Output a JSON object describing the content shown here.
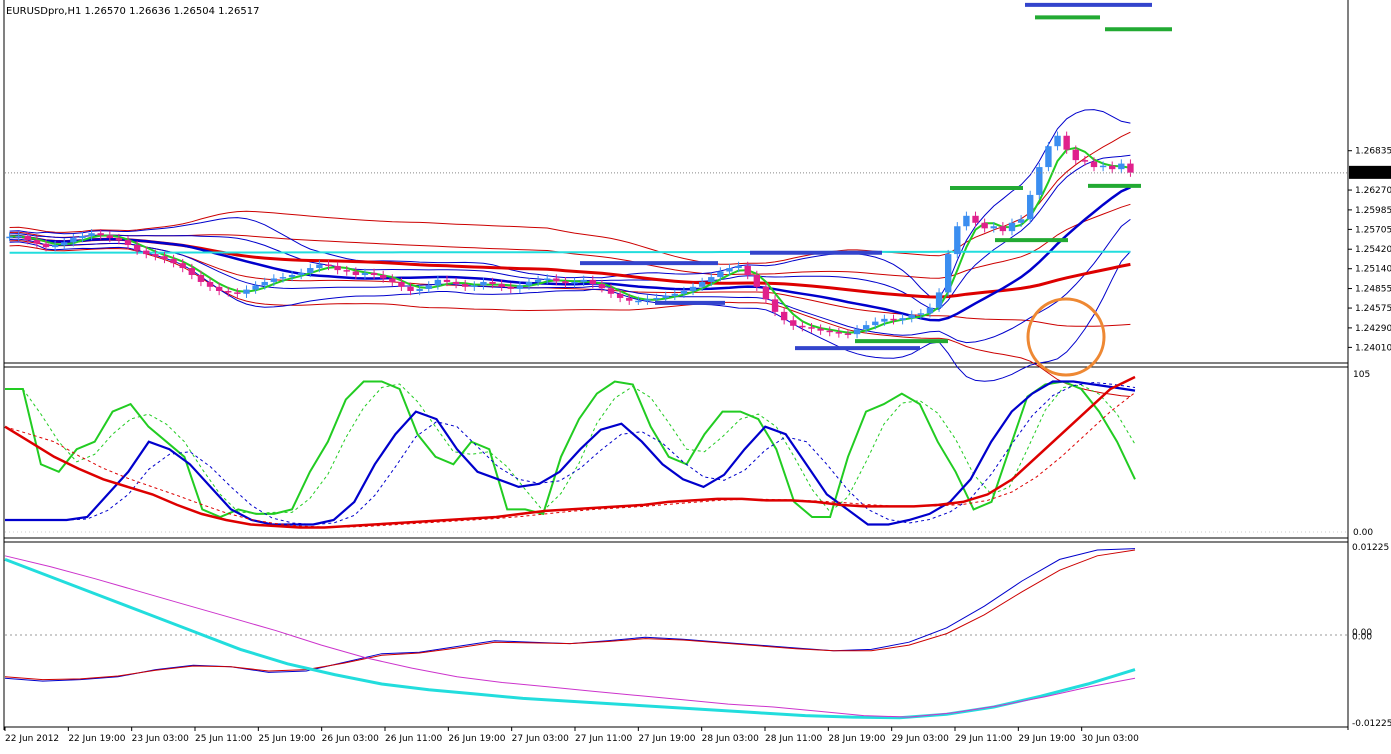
{
  "header": {
    "symbol_info": "EURUSDpro,H1  1.26570 1.26636 1.26504 1.26517"
  },
  "colors": {
    "background": "#ffffff",
    "bull_candle": "#3b8ef0",
    "bear_candle": "#e0208c",
    "bb_outer": "#cc0000",
    "bb_inner": "#0000cc",
    "ma_red": "#dd0000",
    "ma_blue": "#0000cc",
    "ma_green": "#22cc22",
    "ma_cyan": "#22dddd",
    "level_blue": "#3344cc",
    "level_green": "#22aa33",
    "circle_orange": "#ee8833",
    "osc_magenta": "#cc33cc"
  },
  "chart_data": [
    {
      "type": "candlestick",
      "title": "EURUSDpro,H1",
      "ylim": [
        1.238,
        1.29
      ],
      "y_ticks": [
        "1.26835",
        "1.26270",
        "1.25985",
        "1.25705",
        "1.25420",
        "1.25140",
        "1.24855",
        "1.24575",
        "1.24290",
        "1.24010"
      ],
      "current_price": "1.26517",
      "x_ticks": [
        "22 Jun 2012",
        "22 Jun 19:00",
        "23 Jun 03:00",
        "25 Jun 11:00",
        "25 Jun 19:00",
        "26 Jun 03:00",
        "26 Jun 11:00",
        "26 Jun 19:00",
        "27 Jun 03:00",
        "27 Jun 11:00",
        "27 Jun 19:00",
        "28 Jun 03:00",
        "28 Jun 11:00",
        "28 Jun 19:00",
        "29 Jun 03:00",
        "29 Jun 11:00",
        "29 Jun 19:00",
        "30 Jun 03:00"
      ],
      "closes": [
        1.256,
        1.2561,
        1.2555,
        1.255,
        1.2545,
        1.2548,
        1.2552,
        1.2558,
        1.2561,
        1.2565,
        1.2562,
        1.2558,
        1.2555,
        1.2548,
        1.254,
        1.2535,
        1.2532,
        1.2528,
        1.2522,
        1.2515,
        1.2505,
        1.2495,
        1.2488,
        1.2482,
        1.248,
        1.2478,
        1.2484,
        1.249,
        1.2495,
        1.25,
        1.2502,
        1.2505,
        1.2508,
        1.2515,
        1.252,
        1.2518,
        1.2512,
        1.251,
        1.2505,
        1.2508,
        1.2505,
        1.25,
        1.2495,
        1.2488,
        1.2482,
        1.2485,
        1.249,
        1.2498,
        1.2495,
        1.2492,
        1.2488,
        1.249,
        1.2495,
        1.2492,
        1.2488,
        1.2485,
        1.249,
        1.2495,
        1.2498,
        1.25,
        1.2496,
        1.2493,
        1.2495,
        1.2498,
        1.2492,
        1.2486,
        1.2478,
        1.2472,
        1.2468,
        1.2468,
        1.247,
        1.2472,
        1.2475,
        1.2478,
        1.2482,
        1.2488,
        1.2495,
        1.2502,
        1.251,
        1.2515,
        1.2518,
        1.2505,
        1.2488,
        1.247,
        1.2452,
        1.244,
        1.2432,
        1.243,
        1.2428,
        1.2425,
        1.2423,
        1.2421,
        1.242,
        1.2427,
        1.2433,
        1.2438,
        1.2442,
        1.244,
        1.2443,
        1.2448,
        1.245,
        1.2458,
        1.248,
        1.2535,
        1.2575,
        1.259,
        1.258,
        1.2572,
        1.2575,
        1.2568,
        1.258,
        1.2585,
        1.262,
        1.266,
        1.269,
        1.2705,
        1.2685,
        1.267,
        1.2668,
        1.266,
        1.2662,
        1.2657,
        1.2665,
        1.2652
      ]
    },
    {
      "type": "line",
      "title": "",
      "ylim": [
        0,
        105
      ],
      "y_ticks": [
        "105",
        "0.00"
      ],
      "series": [
        {
          "color": "#22cc22",
          "style": "solid",
          "values": [
            95,
            95,
            45,
            40,
            55,
            60,
            80,
            85,
            70,
            60,
            50,
            15,
            10,
            15,
            12,
            12,
            15,
            40,
            60,
            88,
            100,
            100,
            95,
            65,
            50,
            45,
            60,
            55,
            15,
            15,
            12,
            50,
            75,
            92,
            100,
            98,
            70,
            50,
            45,
            65,
            80,
            80,
            75,
            55,
            20,
            10,
            10,
            50,
            80,
            85,
            92,
            85,
            60,
            40,
            15,
            20,
            55,
            90,
            98,
            100,
            95,
            80,
            60,
            35
          ]
        },
        {
          "color": "#0000cc",
          "style": "solid",
          "values": [
            8,
            8,
            8,
            8,
            10,
            25,
            40,
            60,
            55,
            45,
            30,
            15,
            8,
            5,
            5,
            5,
            8,
            20,
            45,
            65,
            80,
            75,
            55,
            40,
            35,
            30,
            32,
            40,
            55,
            68,
            72,
            60,
            45,
            35,
            30,
            38,
            55,
            70,
            65,
            45,
            25,
            15,
            5,
            5,
            8,
            12,
            20,
            35,
            60,
            80,
            92,
            100,
            100,
            98,
            96,
            94
          ]
        },
        {
          "color": "#dd0000",
          "style": "solid",
          "values": [
            70,
            60,
            50,
            42,
            35,
            30,
            25,
            18,
            12,
            8,
            5,
            4,
            3,
            3,
            4,
            5,
            6,
            7,
            8,
            9,
            10,
            12,
            14,
            15,
            16,
            17,
            18,
            20,
            21,
            22,
            22,
            21,
            21,
            20,
            18,
            17,
            17,
            17,
            18,
            20,
            25,
            35,
            50,
            65,
            80,
            95,
            103
          ]
        }
      ]
    },
    {
      "type": "line",
      "title": "",
      "ylim": [
        -0.0125,
        0.0125
      ],
      "y_ticks": [
        "0.01225",
        "0.00",
        "0.00",
        "-0.01225"
      ],
      "series": [
        {
          "color": "#0000cc",
          "style": "solid",
          "values": [
            -0.006,
            -0.0064,
            -0.0062,
            -0.0058,
            -0.0048,
            -0.0042,
            -0.0044,
            -0.0052,
            -0.005,
            -0.0038,
            -0.0026,
            -0.0024,
            -0.0016,
            -0.0008,
            -0.001,
            -0.0012,
            -0.0008,
            -0.0003,
            -0.0006,
            -0.001,
            -0.0014,
            -0.0018,
            -0.0022,
            -0.002,
            -0.001,
            0.001,
            0.004,
            0.0075,
            0.0105,
            0.0118,
            0.012
          ]
        },
        {
          "color": "#cc0000",
          "style": "solid",
          "values": [
            -0.0058,
            -0.0062,
            -0.0061,
            -0.0057,
            -0.0049,
            -0.0043,
            -0.0044,
            -0.005,
            -0.0048,
            -0.0039,
            -0.0028,
            -0.0025,
            -0.0018,
            -0.001,
            -0.0011,
            -0.0012,
            -0.0009,
            -0.0005,
            -0.0007,
            -0.0011,
            -0.0015,
            -0.0019,
            -0.0022,
            -0.0022,
            -0.0014,
            0.0002,
            0.0028,
            0.006,
            0.009,
            0.011,
            0.0118
          ]
        },
        {
          "color": "#22dddd",
          "style": "thick",
          "values": [
            0.0105,
            0.008,
            0.0055,
            0.003,
            0.0005,
            -0.002,
            -0.004,
            -0.0055,
            -0.0068,
            -0.0076,
            -0.0082,
            -0.0088,
            -0.0092,
            -0.0096,
            -0.01,
            -0.0104,
            -0.0108,
            -0.0112,
            -0.0114,
            -0.0115,
            -0.011,
            -0.01,
            -0.0085,
            -0.0068,
            -0.0048
          ]
        },
        {
          "color": "#cc33cc",
          "style": "solid",
          "values": [
            0.011,
            0.0095,
            0.0078,
            0.006,
            0.0042,
            0.0024,
            0.0006,
            -0.0014,
            -0.0032,
            -0.0046,
            -0.0058,
            -0.0066,
            -0.0072,
            -0.0078,
            -0.0084,
            -0.009,
            -0.0096,
            -0.01,
            -0.0106,
            -0.0112,
            -0.0114,
            -0.0108,
            -0.0098,
            -0.0086,
            -0.0072,
            -0.006
          ]
        }
      ]
    }
  ]
}
